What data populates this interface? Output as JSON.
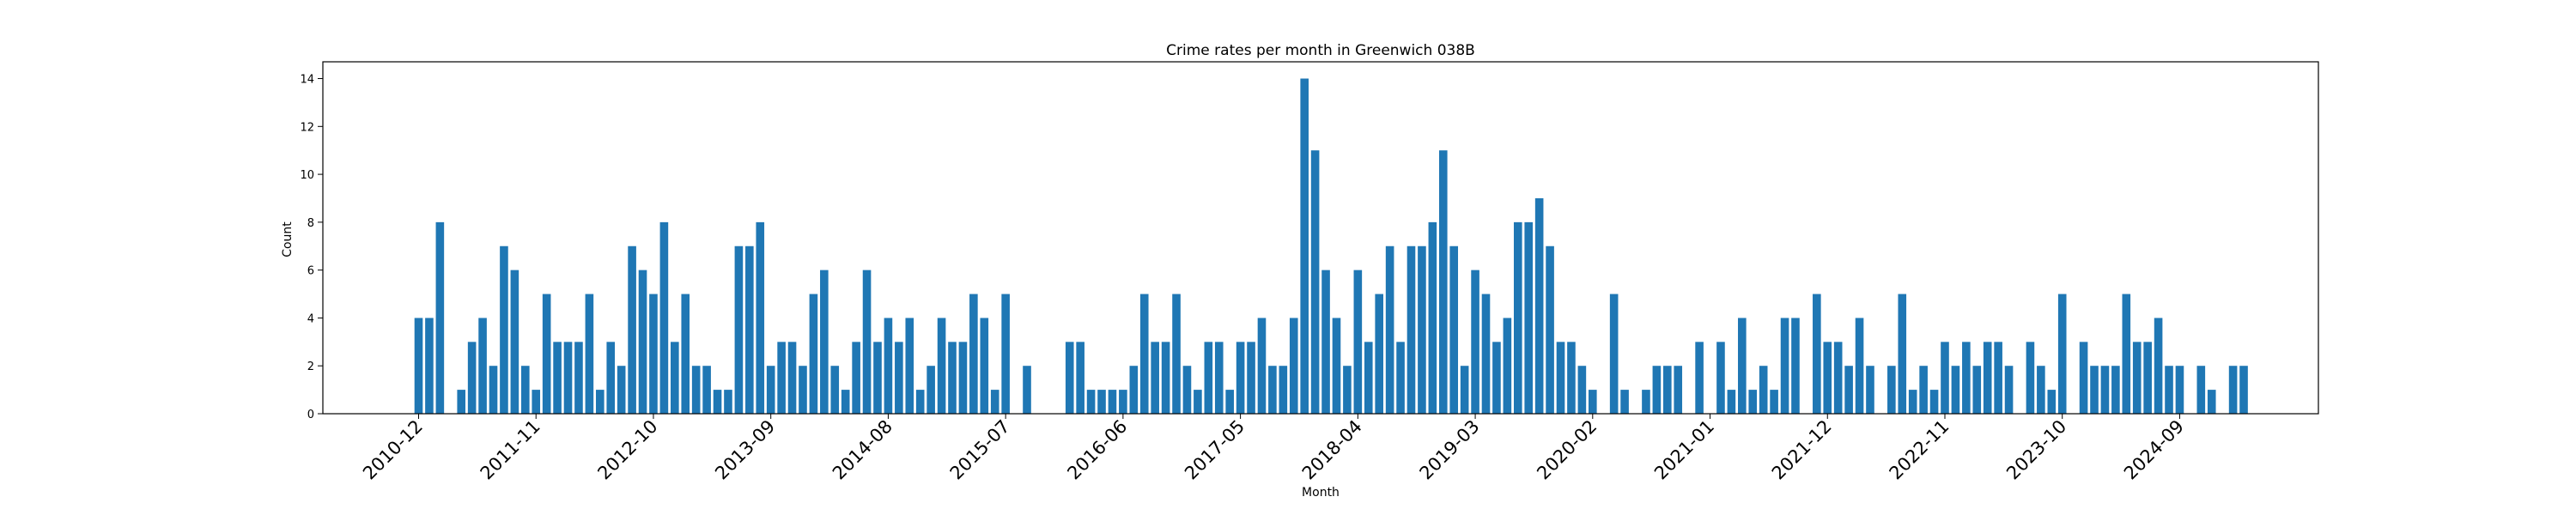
{
  "chart_data": {
    "type": "bar",
    "title": "Crime rates per month in Greenwich 038B",
    "xlabel": "Month",
    "ylabel": "Count",
    "ylim": [
      0,
      14.7
    ],
    "yticks": [
      0,
      2,
      4,
      6,
      8,
      10,
      12,
      14
    ],
    "xtick_labels": [
      "2010-12",
      "2011-11",
      "2012-10",
      "2013-09",
      "2014-08",
      "2015-07",
      "2016-06",
      "2017-05",
      "2018-04",
      "2019-03",
      "2020-02",
      "2021-01",
      "2021-12",
      "2022-11",
      "2023-10",
      "2024-09"
    ],
    "start_month": "2010-12",
    "values": [
      4,
      4,
      8,
      0,
      1,
      3,
      4,
      2,
      7,
      6,
      2,
      1,
      5,
      3,
      3,
      3,
      5,
      1,
      3,
      2,
      7,
      6,
      5,
      8,
      3,
      5,
      2,
      2,
      1,
      1,
      7,
      7,
      8,
      2,
      3,
      3,
      2,
      5,
      6,
      2,
      1,
      3,
      6,
      3,
      4,
      3,
      4,
      1,
      2,
      4,
      3,
      3,
      5,
      4,
      1,
      5,
      0,
      2,
      0,
      0,
      0,
      3,
      3,
      1,
      1,
      1,
      1,
      2,
      5,
      3,
      3,
      5,
      2,
      1,
      3,
      3,
      1,
      3,
      3,
      4,
      2,
      2,
      4,
      14,
      11,
      6,
      4,
      2,
      6,
      3,
      5,
      7,
      3,
      7,
      7,
      8,
      11,
      7,
      2,
      6,
      5,
      3,
      4,
      8,
      8,
      9,
      7,
      3,
      3,
      2,
      1,
      0,
      5,
      1,
      0,
      1,
      2,
      2,
      2,
      0,
      3,
      0,
      3,
      1,
      4,
      1,
      2,
      1,
      4,
      4,
      0,
      5,
      3,
      3,
      2,
      4,
      2,
      0,
      2,
      5,
      1,
      2,
      1,
      3,
      2,
      3,
      2,
      3,
      3,
      2,
      0,
      3,
      2,
      1,
      5,
      0,
      3,
      2,
      2,
      2,
      5,
      3,
      3,
      4,
      2,
      2,
      0,
      2,
      1,
      0,
      2,
      2
    ],
    "bar_color": "#1f77b4",
    "grid": false,
    "legend": "none"
  }
}
